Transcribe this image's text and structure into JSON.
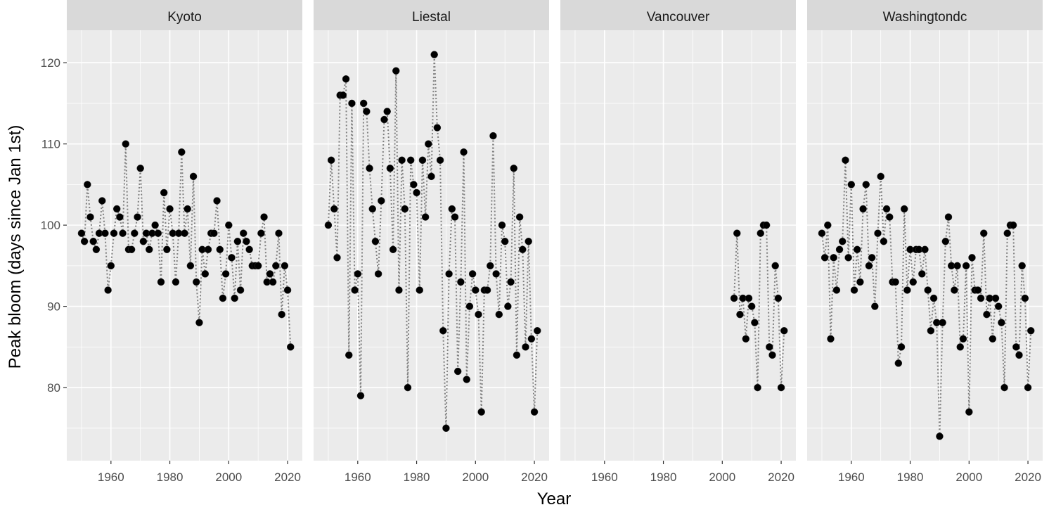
{
  "chart_data": {
    "type": "line",
    "style": "faceted dotted line with points",
    "xlabel": "Year",
    "ylabel": "Peak bloom (days since Jan 1st)",
    "xlim": [
      1945,
      2025
    ],
    "ylim": [
      71,
      124
    ],
    "x_ticks": [
      1960,
      1980,
      2000,
      2020
    ],
    "y_ticks": [
      80,
      90,
      100,
      110,
      120
    ],
    "grid": true,
    "colors": {
      "panel_bg": "#ebebeb",
      "strip_bg": "#d9d9d9",
      "grid": "#ffffff",
      "points": "#000000",
      "line": "#7f7f7f"
    },
    "facets": [
      {
        "name": "Kyoto",
        "x": [
          1950,
          1951,
          1952,
          1953,
          1954,
          1955,
          1956,
          1957,
          1958,
          1959,
          1960,
          1961,
          1962,
          1963,
          1964,
          1965,
          1966,
          1967,
          1968,
          1969,
          1970,
          1971,
          1972,
          1973,
          1974,
          1975,
          1976,
          1977,
          1978,
          1979,
          1980,
          1981,
          1982,
          1983,
          1984,
          1985,
          1986,
          1987,
          1988,
          1989,
          1990,
          1991,
          1992,
          1993,
          1994,
          1995,
          1996,
          1997,
          1998,
          1999,
          2000,
          2001,
          2002,
          2003,
          2004,
          2005,
          2006,
          2007,
          2008,
          2009,
          2010,
          2011,
          2012,
          2013,
          2014,
          2015,
          2016,
          2017,
          2018,
          2019,
          2020,
          2021
        ],
        "y": [
          99,
          98,
          105,
          101,
          98,
          97,
          99,
          103,
          99,
          92,
          95,
          99,
          102,
          101,
          99,
          110,
          97,
          97,
          99,
          101,
          107,
          98,
          99,
          97,
          99,
          100,
          99,
          93,
          104,
          97,
          102,
          99,
          93,
          99,
          109,
          99,
          102,
          95,
          106,
          93,
          88,
          97,
          94,
          97,
          99,
          99,
          103,
          97,
          91,
          94,
          100,
          96,
          91,
          98,
          92,
          99,
          98,
          97,
          95,
          95,
          95,
          99,
          101,
          93,
          94,
          93,
          95,
          99,
          89,
          95,
          92,
          85
        ]
      },
      {
        "name": "Liestal",
        "x": [
          1950,
          1951,
          1952,
          1953,
          1954,
          1955,
          1956,
          1957,
          1958,
          1959,
          1960,
          1961,
          1962,
          1963,
          1964,
          1965,
          1966,
          1967,
          1968,
          1969,
          1970,
          1971,
          1972,
          1973,
          1974,
          1975,
          1976,
          1977,
          1978,
          1979,
          1980,
          1981,
          1982,
          1983,
          1984,
          1985,
          1986,
          1987,
          1988,
          1989,
          1990,
          1991,
          1992,
          1993,
          1994,
          1995,
          1996,
          1997,
          1998,
          1999,
          2000,
          2001,
          2002,
          2003,
          2004,
          2005,
          2006,
          2007,
          2008,
          2009,
          2010,
          2011,
          2012,
          2013,
          2014,
          2015,
          2016,
          2017,
          2018,
          2019,
          2020,
          2021
        ],
        "y": [
          100,
          108,
          102,
          96,
          116,
          116,
          118,
          84,
          115,
          92,
          94,
          79,
          115,
          114,
          107,
          102,
          98,
          94,
          103,
          113,
          114,
          107,
          97,
          119,
          92,
          108,
          102,
          80,
          108,
          105,
          104,
          92,
          108,
          101,
          110,
          106,
          121,
          112,
          108,
          87,
          75,
          94,
          102,
          101,
          82,
          93,
          109,
          81,
          90,
          94,
          92,
          89,
          77,
          92,
          92,
          95,
          111,
          94,
          89,
          100,
          98,
          90,
          93,
          107,
          84,
          101,
          97,
          85,
          98,
          86,
          77,
          87
        ]
      },
      {
        "name": "Vancouver",
        "x": [
          2004,
          2005,
          2006,
          2007,
          2008,
          2009,
          2010,
          2011,
          2012,
          2013,
          2014,
          2015,
          2016,
          2017,
          2018,
          2019,
          2020,
          2021
        ],
        "y": [
          91,
          99,
          89,
          91,
          86,
          91,
          90,
          88,
          80,
          99,
          100,
          100,
          85,
          84,
          95,
          91,
          80,
          87
        ]
      },
      {
        "name": "Washingtondc",
        "x": [
          1950,
          1951,
          1952,
          1953,
          1954,
          1955,
          1956,
          1957,
          1958,
          1959,
          1960,
          1961,
          1962,
          1963,
          1964,
          1965,
          1966,
          1967,
          1968,
          1969,
          1970,
          1971,
          1972,
          1973,
          1974,
          1975,
          1976,
          1977,
          1978,
          1979,
          1980,
          1981,
          1982,
          1983,
          1984,
          1985,
          1986,
          1987,
          1988,
          1989,
          1990,
          1991,
          1992,
          1993,
          1994,
          1995,
          1996,
          1997,
          1998,
          1999,
          2000,
          2001,
          2002,
          2003,
          2004,
          2005,
          2006,
          2007,
          2008,
          2009,
          2010,
          2011,
          2012,
          2013,
          2014,
          2015,
          2016,
          2017,
          2018,
          2019,
          2020,
          2021
        ],
        "y": [
          99,
          96,
          100,
          86,
          96,
          92,
          97,
          98,
          108,
          96,
          105,
          92,
          97,
          93,
          102,
          105,
          95,
          96,
          90,
          99,
          106,
          98,
          102,
          101,
          93,
          93,
          83,
          85,
          102,
          92,
          97,
          93,
          97,
          97,
          94,
          97,
          92,
          87,
          91,
          88,
          74,
          88,
          98,
          101,
          95,
          92,
          95,
          85,
          86,
          95,
          77,
          96,
          92,
          92,
          91,
          99,
          89,
          91,
          86,
          91,
          90,
          88,
          80,
          99,
          100,
          100,
          85,
          84,
          95,
          91,
          80,
          87
        ]
      }
    ]
  }
}
